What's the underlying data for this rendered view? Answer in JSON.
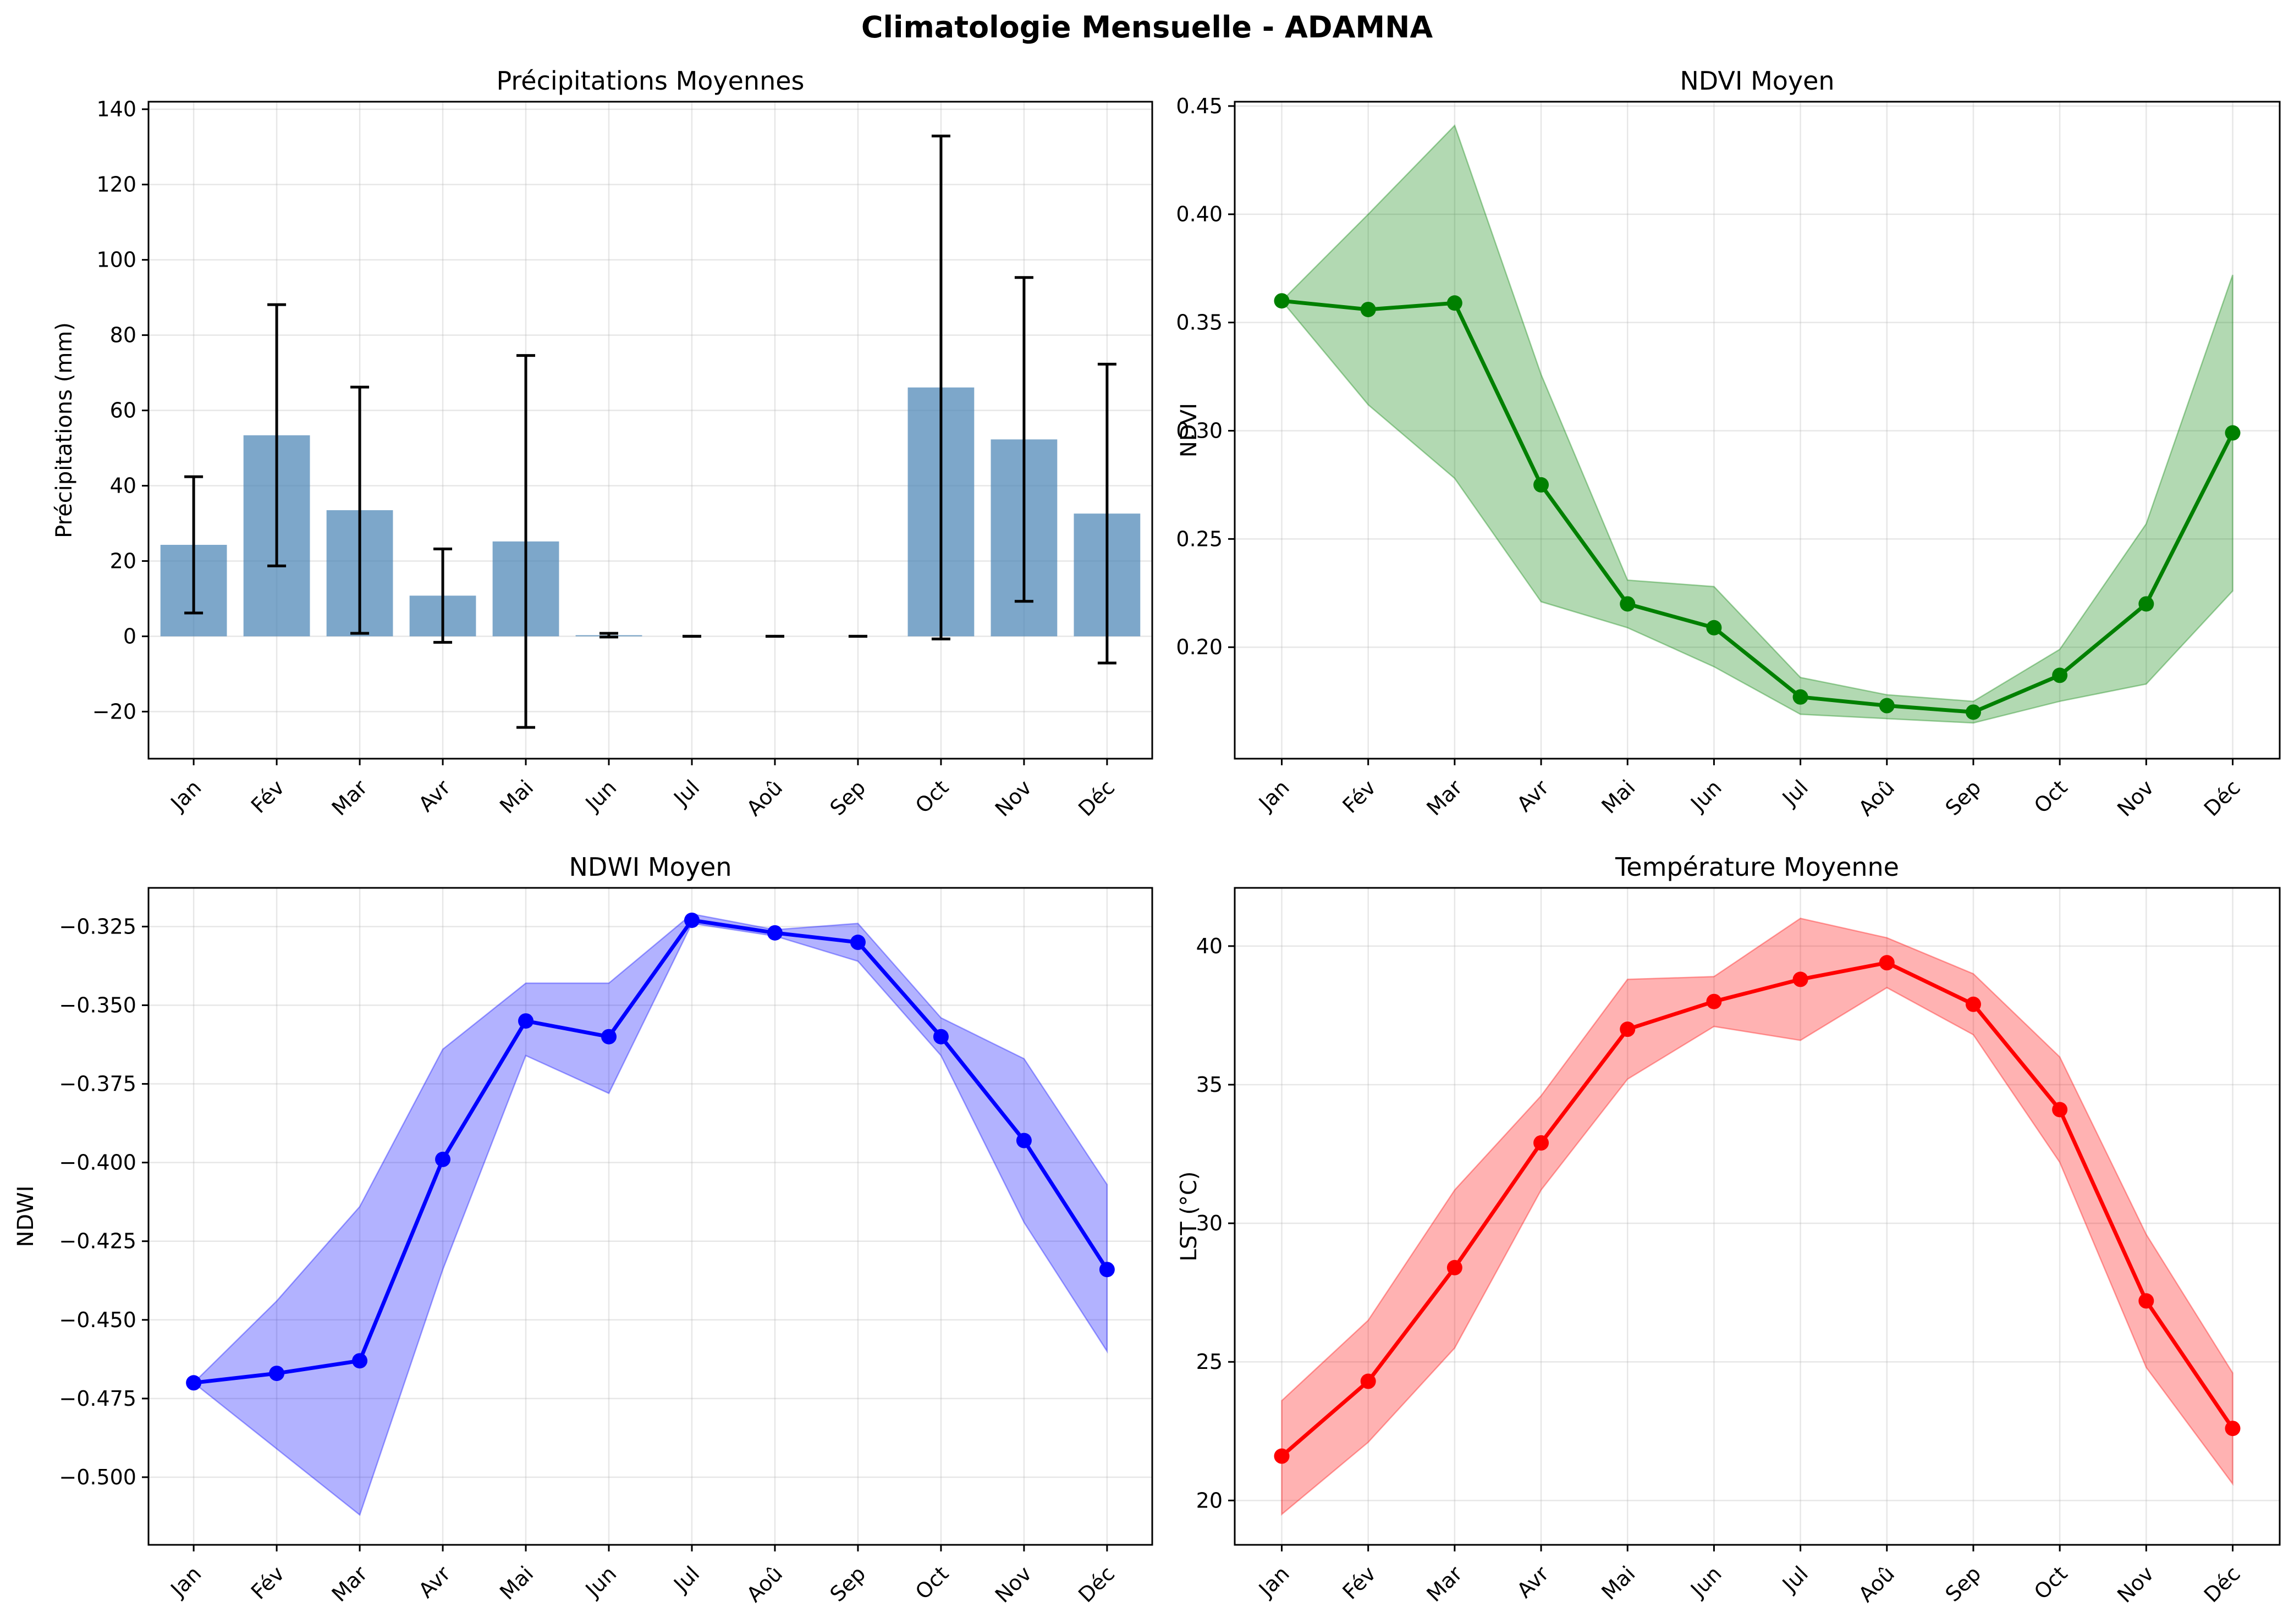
{
  "figure": {
    "title": "Climatologie Mensuelle - ADAMNA"
  },
  "chart_data": [
    {
      "type": "bar",
      "title": "Précipitations Moyennes",
      "xlabel": "",
      "ylabel": "Précipitations (mm)",
      "categories": [
        "Jan",
        "Fév",
        "Mar",
        "Avr",
        "Mai",
        "Jun",
        "Jul",
        "Aoû",
        "Sep",
        "Oct",
        "Nov",
        "Déc"
      ],
      "values": [
        24.3,
        53.4,
        33.5,
        10.8,
        25.2,
        0.3,
        0.0,
        0.0,
        0.0,
        66.1,
        52.3,
        32.6
      ],
      "error": [
        18.1,
        34.7,
        32.7,
        12.4,
        49.4,
        0.5,
        0.0,
        0.0,
        0.0,
        66.8,
        43.0,
        39.7
      ],
      "ylim": [
        -32.5,
        142
      ],
      "yticks": [
        -20,
        0,
        20,
        40,
        60,
        80,
        100,
        120,
        140
      ],
      "ytick_labels": [
        "−20",
        "0",
        "20",
        "40",
        "60",
        "80",
        "100",
        "120",
        "140"
      ],
      "color": "#4682b4",
      "grid": true
    },
    {
      "type": "line",
      "title": "NDVI Moyen",
      "xlabel": "",
      "ylabel": "NDVI",
      "categories": [
        "Jan",
        "Fév",
        "Mar",
        "Avr",
        "Mai",
        "Jun",
        "Jul",
        "Aoû",
        "Sep",
        "Oct",
        "Nov",
        "Déc"
      ],
      "values": [
        0.36,
        0.356,
        0.359,
        0.275,
        0.22,
        0.209,
        0.177,
        0.173,
        0.17,
        0.187,
        0.22,
        0.299
      ],
      "band_upper": [
        0.36,
        0.4,
        0.441,
        0.326,
        0.231,
        0.228,
        0.186,
        0.178,
        0.175,
        0.199,
        0.257,
        0.372
      ],
      "band_lower": [
        0.36,
        0.312,
        0.278,
        0.221,
        0.209,
        0.191,
        0.169,
        0.167,
        0.165,
        0.175,
        0.183,
        0.226
      ],
      "ylim": [
        0.1485,
        0.452
      ],
      "yticks": [
        0.2,
        0.25,
        0.3,
        0.35,
        0.4,
        0.45
      ],
      "ytick_labels": [
        "0.20",
        "0.25",
        "0.30",
        "0.35",
        "0.40",
        "0.45"
      ],
      "color": "#008000",
      "band_color": "#008000",
      "grid": true
    },
    {
      "type": "line",
      "title": "NDWI Moyen",
      "xlabel": "",
      "ylabel": "NDWI",
      "categories": [
        "Jan",
        "Fév",
        "Mar",
        "Avr",
        "Mai",
        "Jun",
        "Jul",
        "Aoû",
        "Sep",
        "Oct",
        "Nov",
        "Déc"
      ],
      "values": [
        -0.47,
        -0.467,
        -0.463,
        -0.399,
        -0.355,
        -0.36,
        -0.323,
        -0.327,
        -0.33,
        -0.36,
        -0.393,
        -0.434
      ],
      "band_upper": [
        -0.47,
        -0.444,
        -0.414,
        -0.364,
        -0.343,
        -0.343,
        -0.321,
        -0.326,
        -0.324,
        -0.354,
        -0.367,
        -0.407
      ],
      "band_lower": [
        -0.47,
        -0.491,
        -0.512,
        -0.434,
        -0.366,
        -0.378,
        -0.324,
        -0.328,
        -0.336,
        -0.366,
        -0.419,
        -0.46
      ],
      "ylim": [
        -0.5215,
        -0.3127
      ],
      "yticks": [
        -0.5,
        -0.475,
        -0.45,
        -0.425,
        -0.4,
        -0.375,
        -0.35,
        -0.325
      ],
      "ytick_labels": [
        "−0.500",
        "−0.475",
        "−0.450",
        "−0.425",
        "−0.400",
        "−0.375",
        "−0.350",
        "−0.325"
      ],
      "color": "#0000ff",
      "band_color": "#0000ff",
      "grid": true
    },
    {
      "type": "line",
      "title": "Température Moyenne",
      "xlabel": "",
      "ylabel": "LST (°C)",
      "categories": [
        "Jan",
        "Fév",
        "Mar",
        "Avr",
        "Mai",
        "Jun",
        "Jul",
        "Aoû",
        "Sep",
        "Oct",
        "Nov",
        "Déc"
      ],
      "values": [
        21.6,
        24.3,
        28.4,
        32.9,
        37.0,
        38.0,
        38.8,
        39.4,
        37.9,
        34.1,
        27.2,
        22.6
      ],
      "band_upper": [
        23.6,
        26.5,
        31.2,
        34.6,
        38.8,
        38.9,
        41.0,
        40.3,
        39.0,
        36.0,
        29.6,
        24.6
      ],
      "band_lower": [
        19.5,
        22.1,
        25.5,
        31.2,
        35.2,
        37.1,
        36.6,
        38.5,
        36.8,
        32.2,
        24.8,
        20.6
      ],
      "ylim": [
        18.4,
        42.1
      ],
      "yticks": [
        20,
        25,
        30,
        35,
        40
      ],
      "ytick_labels": [
        "20",
        "25",
        "30",
        "35",
        "40"
      ],
      "color": "#ff0000",
      "band_color": "#ff0000",
      "grid": true
    }
  ]
}
